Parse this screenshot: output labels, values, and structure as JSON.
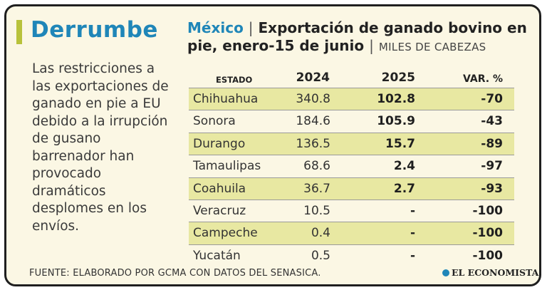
{
  "colors": {
    "accent": "#1f86b8",
    "highlight": "#e8e8a2",
    "kicker_bar": "#b8c23a",
    "background": "#fbf7e4"
  },
  "kicker": "Derrumbe",
  "intro": "Las restricciones a las exportaciones de ganado en pie a EU debido a la irrupción de gusano barrenador han provocado dramáticos desplomes en los envíos.",
  "title": {
    "country": "México",
    "separator": "|",
    "main": "Exportación de ganado bovino en pie, enero-15 de junio",
    "units": "MILES DE CABEZAS"
  },
  "source": "FUENTE: ELABORADO POR GCMA CON DATOS DEL SENASICA.",
  "brand": "EL ECONOMISTA",
  "chart_data": {
    "type": "table",
    "columns": [
      "ESTADO",
      "2024",
      "2025",
      "VAR. %"
    ],
    "rows": [
      {
        "estado": "Chihuahua",
        "y2024": "340.8",
        "y2025": "102.8",
        "var": "-70",
        "highlight": true
      },
      {
        "estado": "Sonora",
        "y2024": "184.6",
        "y2025": "105.9",
        "var": "-43",
        "highlight": false
      },
      {
        "estado": "Durango",
        "y2024": "136.5",
        "y2025": "15.7",
        "var": "-89",
        "highlight": true
      },
      {
        "estado": "Tamaulipas",
        "y2024": "68.6",
        "y2025": "2.4",
        "var": "-97",
        "highlight": false
      },
      {
        "estado": "Coahuila",
        "y2024": "36.7",
        "y2025": "2.7",
        "var": "-93",
        "highlight": true
      },
      {
        "estado": "Veracruz",
        "y2024": "10.5",
        "y2025": "-",
        "var": "-100",
        "highlight": false
      },
      {
        "estado": "Campeche",
        "y2024": "0.4",
        "y2025": "-",
        "var": "-100",
        "highlight": true
      },
      {
        "estado": "Yucatán",
        "y2024": "0.5",
        "y2025": "-",
        "var": "-100",
        "highlight": false
      }
    ]
  }
}
